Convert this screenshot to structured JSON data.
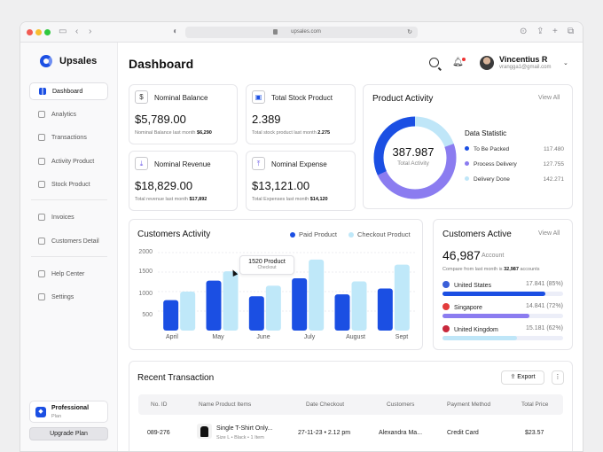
{
  "browser": {
    "url": "upsales.com"
  },
  "brand": "Upsales",
  "nav": [
    {
      "label": "Dashboard"
    },
    {
      "label": "Analytics"
    },
    {
      "label": "Transactions"
    },
    {
      "label": "Activity Product"
    },
    {
      "label": "Stock Product"
    },
    {
      "label": "Invoices"
    },
    {
      "label": "Customers Detail"
    },
    {
      "label": "Help Center"
    },
    {
      "label": "Settings"
    }
  ],
  "plan": {
    "title": "Professional",
    "sub": "Plan",
    "button": "Upgrade Plan"
  },
  "header": {
    "title": "Dashboard",
    "user_name": "Vincentius R",
    "user_email": "vrangga1@gmail.com"
  },
  "stats": [
    {
      "label": "Nominal Balance",
      "value": "$5,789.00",
      "sub": "Nominal Balance last month",
      "sub_value": "$6,290"
    },
    {
      "label": "Total Stock Product",
      "value": "2.389",
      "sub": "Total stock product last month",
      "sub_value": "2.275"
    },
    {
      "label": "Nominal Revenue",
      "value": "$18,829.00",
      "sub": "Total revenue last month",
      "sub_value": "$17,892"
    },
    {
      "label": "Nominal Expense",
      "value": "$13,121.00",
      "sub": "Total Expenses last month",
      "sub_value": "$14,120"
    }
  ],
  "product_activity": {
    "title": "Product Activity",
    "view_all": "View All",
    "total": "387.987",
    "total_label": "Total Activity",
    "stat_title": "Data Statistic",
    "items": [
      {
        "label": "To Be Packed",
        "value": "117.480",
        "color": "#1b4fe3"
      },
      {
        "label": "Process Delivery",
        "value": "127.755",
        "color": "#8b7cf0"
      },
      {
        "label": "Delivery Done",
        "value": "142.271",
        "color": "#bfe6f8"
      }
    ]
  },
  "customers_activity": {
    "title": "Customers Activity",
    "legend": [
      "Paid Product",
      "Checkout Product"
    ],
    "tooltip_value": "1520 Product",
    "tooltip_label": "Checkout"
  },
  "chart_data": {
    "type": "bar",
    "title": "Customers Activity",
    "categories": [
      "April",
      "May",
      "June",
      "July",
      "August",
      "Sept"
    ],
    "ylim": [
      0,
      2000
    ],
    "yticks": [
      "2000",
      "1500",
      "1000",
      "500"
    ],
    "grid": true,
    "legend": "top-right",
    "series": [
      {
        "name": "Paid Product",
        "color": "#1b4fe3",
        "values": [
          780,
          1280,
          880,
          1340,
          930,
          1080
        ]
      },
      {
        "name": "Checkout Product",
        "color": "#bfe8f9",
        "values": [
          1000,
          1520,
          1150,
          1820,
          1260,
          1690
        ]
      }
    ]
  },
  "customers_active": {
    "title": "Customers Active",
    "view_all": "View All",
    "value": "46,987",
    "unit": "Account",
    "compare": "Compare from last month is",
    "compare_value": "32,987",
    "compare_unit": "accounts",
    "countries": [
      {
        "name": "United States",
        "value": "17.841 (85%)",
        "pct": 85,
        "color": "#1b4fe3",
        "flag": "#3a5fd8"
      },
      {
        "name": "Singapore",
        "value": "14.841 (72%)",
        "pct": 72,
        "color": "#8b7cf0",
        "flag": "#e33c3c"
      },
      {
        "name": "United Kingdom",
        "value": "15.181 (62%)",
        "pct": 62,
        "color": "#bfe6f8",
        "flag": "#c8283c"
      }
    ]
  },
  "transactions": {
    "title": "Recent Transaction",
    "export": "Export",
    "headers": [
      "No. ID",
      "Name Product Items",
      "Date Checkout",
      "Customers",
      "Payment Method",
      "Total Price"
    ],
    "rows": [
      {
        "id": "089-276",
        "product": "Single T-Shirt Only...",
        "meta": "Size L • Black • 1 Item",
        "date": "27-11-23 • 2.12 pm",
        "customer": "Alexandra Ma...",
        "payment": "Credit Card",
        "total": "$23.57"
      }
    ]
  }
}
